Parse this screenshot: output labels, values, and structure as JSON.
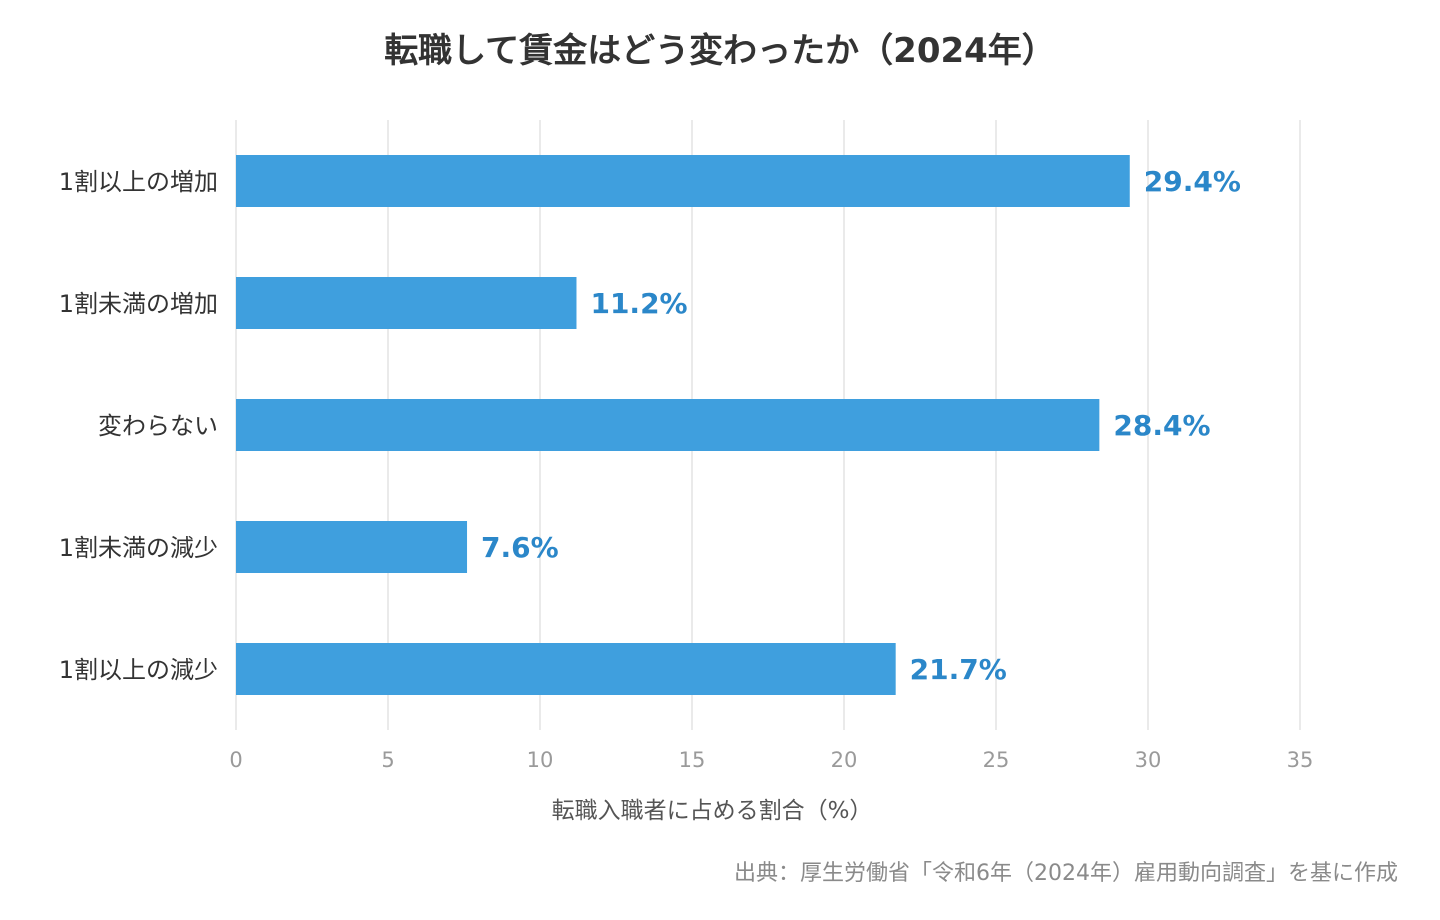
{
  "colors": {
    "bar": "#3f9fde",
    "value_label": "#2b87c9",
    "grid": "#e3e3e3"
  },
  "source_note": "出典：厚生労働省「令和6年（2024年）雇用動向調査」を基に作成",
  "chart_data": {
    "type": "bar",
    "orientation": "horizontal",
    "title": "転職して賃金はどう変わったか（2024年）",
    "xlabel": "転職入職者に占める割合（%）",
    "ylabel": "",
    "categories": [
      "1割以上の増加",
      "1割未満の増加",
      "変わらない",
      "1割未満の減少",
      "1割以上の減少"
    ],
    "values": [
      29.4,
      11.2,
      28.4,
      7.6,
      21.7
    ],
    "value_labels": [
      "29.4%",
      "11.2%",
      "28.4%",
      "7.6%",
      "21.7%"
    ],
    "xlim": [
      0,
      35
    ],
    "xticks": [
      0,
      5,
      10,
      15,
      20,
      25,
      30,
      35
    ],
    "grid": true,
    "legend": "none"
  }
}
